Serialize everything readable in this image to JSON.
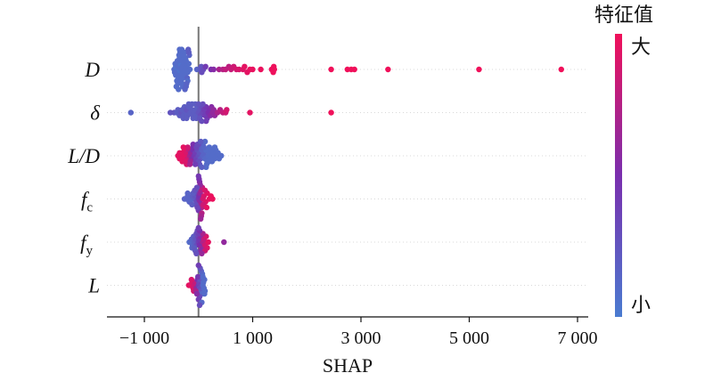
{
  "chart_data": {
    "type": "scatter",
    "subtype": "shap-beeswarm",
    "xlabel": "SHAP",
    "xlim": [
      -1500,
      7200
    ],
    "xticks": [
      -1000,
      1000,
      3000,
      5000,
      7000
    ],
    "xtick_labels": [
      "−1 000",
      "1 000",
      "3 000",
      "5 000",
      "7 000"
    ],
    "zero_line": 0,
    "grid": false,
    "colorbar": {
      "title": "特征值",
      "high_label": "大",
      "low_label": "小",
      "colors": {
        "low": "#4a7bd0",
        "mid": "#7a2fae",
        "high": "#f0105a"
      }
    },
    "features": [
      {
        "label": "D",
        "subscript": "",
        "points": [
          [
            -450,
            0.1
          ],
          [
            -420,
            0.05
          ],
          [
            -400,
            0.05
          ],
          [
            -380,
            0.1
          ],
          [
            -360,
            0.05
          ],
          [
            -340,
            0.05
          ],
          [
            -320,
            0.1
          ],
          [
            -300,
            0.1
          ],
          [
            -280,
            0.1
          ],
          [
            -260,
            0.1
          ],
          [
            -240,
            0.1
          ],
          [
            -220,
            0.1
          ],
          [
            -200,
            0.1
          ],
          [
            -180,
            0.1
          ],
          [
            -160,
            0.1
          ],
          [
            -440,
            0.1
          ],
          [
            -410,
            0.1
          ],
          [
            -390,
            0.1
          ],
          [
            -370,
            0.1
          ],
          [
            -350,
            0.1
          ],
          [
            -330,
            0.1
          ],
          [
            -310,
            0.1
          ],
          [
            -290,
            0.1
          ],
          [
            -270,
            0.1
          ],
          [
            -250,
            0.1
          ],
          [
            -230,
            0.1
          ],
          [
            -210,
            0.15
          ],
          [
            -430,
            0.1
          ],
          [
            -400,
            0.1
          ],
          [
            -360,
            0.1
          ],
          [
            -320,
            0.1
          ],
          [
            -280,
            0.1
          ],
          [
            -240,
            0.1
          ],
          [
            -200,
            0.1
          ],
          [
            -170,
            0.15
          ],
          [
            -420,
            0.1
          ],
          [
            -380,
            0.1
          ],
          [
            -340,
            0.1
          ],
          [
            -300,
            0.1
          ],
          [
            -260,
            0.1
          ],
          [
            -220,
            0.15
          ],
          [
            -180,
            0.2
          ],
          [
            -410,
            0.1
          ],
          [
            -350,
            0.1
          ],
          [
            -290,
            0.1
          ],
          [
            -230,
            0.15
          ],
          [
            -190,
            0.2
          ],
          [
            -370,
            0.1
          ],
          [
            -310,
            0.1
          ],
          [
            -250,
            0.15
          ],
          [
            -30,
            0.15
          ],
          [
            30,
            0.2
          ],
          [
            50,
            0.25
          ],
          [
            60,
            0.3
          ],
          [
            90,
            0.3
          ],
          [
            130,
            0.42
          ],
          [
            230,
            0.5
          ],
          [
            280,
            0.55
          ],
          [
            380,
            0.7
          ],
          [
            450,
            0.75
          ],
          [
            500,
            0.8
          ],
          [
            560,
            0.78
          ],
          [
            600,
            0.82
          ],
          [
            650,
            0.85
          ],
          [
            700,
            0.88
          ],
          [
            750,
            0.9
          ],
          [
            820,
            0.92
          ],
          [
            850,
            0.95
          ],
          [
            900,
            0.95
          ],
          [
            950,
            0.96
          ],
          [
            1000,
            0.97
          ],
          [
            1150,
            0.98
          ],
          [
            1350,
            0.98
          ],
          [
            1390,
            0.99
          ],
          [
            1380,
            0.99
          ],
          [
            1400,
            0.99
          ],
          [
            2450,
            1
          ],
          [
            2750,
            1
          ],
          [
            2820,
            1
          ],
          [
            2880,
            1
          ],
          [
            3500,
            1
          ],
          [
            5180,
            1
          ],
          [
            6700,
            1
          ]
        ]
      },
      {
        "label": "δ",
        "subscript": "",
        "points": [
          [
            -1250,
            0.15
          ],
          [
            -520,
            0.25
          ],
          [
            -450,
            0.25
          ],
          [
            -400,
            0.2
          ],
          [
            -380,
            0.2
          ],
          [
            -350,
            0.2
          ],
          [
            -320,
            0.25
          ],
          [
            -300,
            0.2
          ],
          [
            -280,
            0.2
          ],
          [
            -260,
            0.2
          ],
          [
            -240,
            0.2
          ],
          [
            -220,
            0.25
          ],
          [
            -200,
            0.2
          ],
          [
            -180,
            0.2
          ],
          [
            -150,
            0.2
          ],
          [
            -120,
            0.2
          ],
          [
            -100,
            0.2
          ],
          [
            -80,
            0.2
          ],
          [
            -60,
            0.2
          ],
          [
            -40,
            0.2
          ],
          [
            -20,
            0.2
          ],
          [
            0,
            0.25
          ],
          [
            20,
            0.25
          ],
          [
            40,
            0.3
          ],
          [
            60,
            0.3
          ],
          [
            80,
            0.35
          ],
          [
            100,
            0.4
          ],
          [
            120,
            0.4
          ],
          [
            140,
            0.45
          ],
          [
            160,
            0.45
          ],
          [
            180,
            0.5
          ],
          [
            200,
            0.5
          ],
          [
            220,
            0.55
          ],
          [
            240,
            0.55
          ],
          [
            260,
            0.6
          ],
          [
            280,
            0.6
          ],
          [
            300,
            0.6
          ],
          [
            -280,
            0.2
          ],
          [
            -220,
            0.2
          ],
          [
            -160,
            0.2
          ],
          [
            -100,
            0.2
          ],
          [
            -40,
            0.2
          ],
          [
            20,
            0.25
          ],
          [
            80,
            0.3
          ],
          [
            140,
            0.4
          ],
          [
            -180,
            0.2
          ],
          [
            -120,
            0.2
          ],
          [
            -60,
            0.2
          ],
          [
            0,
            0.25
          ],
          [
            60,
            0.3
          ],
          [
            350,
            0.7
          ],
          [
            400,
            0.75
          ],
          [
            450,
            0.8
          ],
          [
            500,
            0.85
          ],
          [
            520,
            0.88
          ],
          [
            950,
            0.95
          ],
          [
            2450,
            1
          ]
        ]
      },
      {
        "label": "L/D",
        "subscript": "",
        "points": [
          [
            -380,
            0.95
          ],
          [
            -350,
            0.95
          ],
          [
            -320,
            0.95
          ],
          [
            -300,
            0.95
          ],
          [
            -280,
            0.95
          ],
          [
            -260,
            0.95
          ],
          [
            -240,
            0.95
          ],
          [
            -220,
            0.9
          ],
          [
            -200,
            0.85
          ],
          [
            -180,
            0.8
          ],
          [
            -160,
            0.7
          ],
          [
            -140,
            0.6
          ],
          [
            -120,
            0.55
          ],
          [
            -100,
            0.5
          ],
          [
            -80,
            0.45
          ],
          [
            -60,
            0.4
          ],
          [
            -40,
            0.35
          ],
          [
            -20,
            0.3
          ],
          [
            0,
            0.3
          ],
          [
            20,
            0.25
          ],
          [
            40,
            0.2
          ],
          [
            60,
            0.15
          ],
          [
            80,
            0.15
          ],
          [
            100,
            0.15
          ],
          [
            120,
            0.12
          ],
          [
            140,
            0.1
          ],
          [
            160,
            0.1
          ],
          [
            180,
            0.1
          ],
          [
            200,
            0.1
          ],
          [
            220,
            0.1
          ],
          [
            240,
            0.1
          ],
          [
            260,
            0.1
          ],
          [
            280,
            0.1
          ],
          [
            300,
            0.1
          ],
          [
            320,
            0.1
          ],
          [
            340,
            0.1
          ],
          [
            360,
            0.1
          ],
          [
            380,
            0.1
          ],
          [
            420,
            0.1
          ],
          [
            -350,
            0.95
          ],
          [
            -300,
            0.95
          ],
          [
            -250,
            0.92
          ],
          [
            -200,
            0.85
          ],
          [
            -150,
            0.65
          ],
          [
            -100,
            0.5
          ],
          [
            -50,
            0.38
          ],
          [
            0,
            0.28
          ],
          [
            50,
            0.18
          ],
          [
            100,
            0.14
          ],
          [
            150,
            0.1
          ],
          [
            200,
            0.1
          ],
          [
            250,
            0.1
          ],
          [
            300,
            0.1
          ],
          [
            -280,
            0.95
          ],
          [
            -220,
            0.9
          ],
          [
            -160,
            0.7
          ],
          [
            -100,
            0.5
          ],
          [
            -40,
            0.35
          ],
          [
            20,
            0.25
          ],
          [
            80,
            0.15
          ],
          [
            140,
            0.1
          ],
          [
            200,
            0.1
          ],
          [
            -60,
            0.4
          ],
          [
            0,
            0.3
          ],
          [
            60,
            0.18
          ],
          [
            120,
            0.12
          ],
          [
            -20,
            0.32
          ],
          [
            40,
            0.22
          ]
        ]
      },
      {
        "label": "f",
        "subscript": "c",
        "points": [
          [
            -260,
            0.15
          ],
          [
            -230,
            0.15
          ],
          [
            -200,
            0.15
          ],
          [
            -170,
            0.15
          ],
          [
            -140,
            0.15
          ],
          [
            -110,
            0.2
          ],
          [
            -80,
            0.2
          ],
          [
            -60,
            0.25
          ],
          [
            -40,
            0.3
          ],
          [
            -20,
            0.35
          ],
          [
            0,
            0.45
          ],
          [
            10,
            0.5
          ],
          [
            20,
            0.55
          ],
          [
            30,
            0.6
          ],
          [
            40,
            0.65
          ],
          [
            50,
            0.7
          ],
          [
            60,
            0.75
          ],
          [
            70,
            0.8
          ],
          [
            80,
            0.85
          ],
          [
            100,
            0.9
          ],
          [
            130,
            0.92
          ],
          [
            160,
            0.95
          ],
          [
            200,
            0.95
          ],
          [
            230,
            0.98
          ],
          [
            260,
            0.98
          ],
          [
            -200,
            0.15
          ],
          [
            -150,
            0.15
          ],
          [
            -100,
            0.2
          ],
          [
            -50,
            0.3
          ],
          [
            0,
            0.45
          ],
          [
            30,
            0.6
          ],
          [
            60,
            0.75
          ],
          [
            90,
            0.85
          ],
          [
            120,
            0.9
          ],
          [
            150,
            0.95
          ],
          [
            -120,
            0.2
          ],
          [
            -70,
            0.25
          ],
          [
            -20,
            0.35
          ],
          [
            20,
            0.55
          ],
          [
            50,
            0.7
          ],
          [
            -30,
            0.3
          ],
          [
            10,
            0.5
          ],
          [
            40,
            0.65
          ],
          [
            0,
            0.45
          ]
        ]
      },
      {
        "label": "f",
        "subscript": "y",
        "points": [
          [
            -170,
            0.1
          ],
          [
            -150,
            0.1
          ],
          [
            -130,
            0.15
          ],
          [
            -110,
            0.15
          ],
          [
            -90,
            0.2
          ],
          [
            -70,
            0.2
          ],
          [
            -50,
            0.25
          ],
          [
            -30,
            0.3
          ],
          [
            -10,
            0.35
          ],
          [
            0,
            0.4
          ],
          [
            10,
            0.45
          ],
          [
            20,
            0.5
          ],
          [
            40,
            0.55
          ],
          [
            60,
            0.6
          ],
          [
            80,
            0.7
          ],
          [
            100,
            0.8
          ],
          [
            120,
            0.85
          ],
          [
            140,
            0.9
          ],
          [
            160,
            0.92
          ],
          [
            180,
            0.95
          ],
          [
            -120,
            0.15
          ],
          [
            -80,
            0.2
          ],
          [
            -40,
            0.28
          ],
          [
            0,
            0.4
          ],
          [
            40,
            0.55
          ],
          [
            80,
            0.7
          ],
          [
            120,
            0.85
          ],
          [
            -60,
            0.22
          ],
          [
            -20,
            0.32
          ],
          [
            20,
            0.5
          ],
          [
            60,
            0.62
          ],
          [
            -40,
            0.28
          ],
          [
            0,
            0.4
          ],
          [
            470,
            0.6
          ]
        ]
      },
      {
        "label": "L",
        "subscript": "",
        "points": [
          [
            -180,
            0.95
          ],
          [
            -150,
            0.95
          ],
          [
            -120,
            0.9
          ],
          [
            -100,
            0.9
          ],
          [
            -80,
            0.85
          ],
          [
            -60,
            0.8
          ],
          [
            -40,
            0.6
          ],
          [
            -20,
            0.5
          ],
          [
            0,
            0.4
          ],
          [
            10,
            0.35
          ],
          [
            20,
            0.3
          ],
          [
            30,
            0.25
          ],
          [
            40,
            0.2
          ],
          [
            50,
            0.15
          ],
          [
            60,
            0.12
          ],
          [
            70,
            0.1
          ],
          [
            80,
            0.1
          ],
          [
            90,
            0.1
          ],
          [
            100,
            0.1
          ],
          [
            110,
            0.1
          ],
          [
            120,
            0.1
          ],
          [
            -130,
            0.9
          ],
          [
            -90,
            0.88
          ],
          [
            -50,
            0.7
          ],
          [
            -10,
            0.45
          ],
          [
            20,
            0.3
          ],
          [
            50,
            0.15
          ],
          [
            80,
            0.1
          ],
          [
            110,
            0.1
          ],
          [
            -30,
            0.55
          ],
          [
            0,
            0.4
          ],
          [
            30,
            0.25
          ],
          [
            60,
            0.12
          ],
          [
            0,
            0.4
          ],
          [
            20,
            0.3
          ]
        ]
      }
    ]
  }
}
